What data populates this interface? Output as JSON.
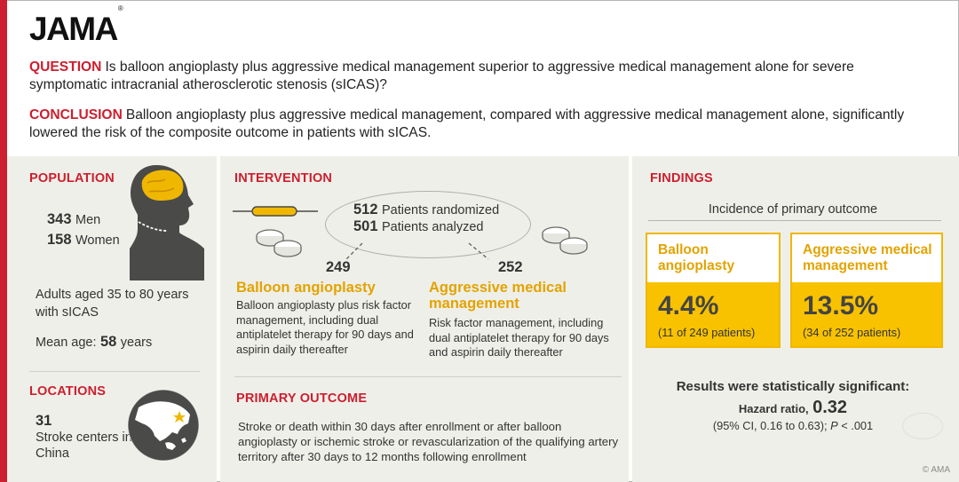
{
  "logo": {
    "text": "JAMA",
    "mark": "®"
  },
  "question": {
    "label": "QUESTION",
    "text": "Is balloon angioplasty plus aggressive medical management superior to aggressive medical management alone for severe symptomatic intracranial atherosclerotic stenosis (sICAS)?"
  },
  "conclusion": {
    "label": "CONCLUSION",
    "text": "Balloon angioplasty plus aggressive medical management, compared with aggressive medical management alone, significantly lowered the risk of the composite outcome in patients with sICAS."
  },
  "population": {
    "heading": "POPULATION",
    "men_count": "343",
    "men_label": "Men",
    "women_count": "158",
    "women_label": "Women",
    "description": "Adults aged 35 to 80 years with sICAS",
    "mean_age_label": "Mean age:",
    "mean_age_value": "58",
    "mean_age_unit": "years"
  },
  "locations": {
    "heading": "LOCATIONS",
    "count": "31",
    "text": "Stroke centers in China"
  },
  "intervention": {
    "heading": "INTERVENTION",
    "randomized_count": "512",
    "randomized_label": "Patients randomized",
    "analyzed_count": "501",
    "analyzed_label": "Patients analyzed",
    "arm1": {
      "count": "249",
      "title": "Balloon angioplasty",
      "description": "Balloon angioplasty plus risk factor management, including dual antiplatelet therapy for 90 days and aspirin daily thereafter"
    },
    "arm2": {
      "count": "252",
      "title": "Aggressive medical management",
      "description": "Risk factor management, including dual antiplatelet therapy for 90 days and aspirin daily thereafter"
    }
  },
  "primary_outcome": {
    "heading": "PRIMARY OUTCOME",
    "text": "Stroke or death within 30 days after enrollment or after balloon angioplasty or ischemic stroke or revascularization of the qualifying artery territory after 30 days to 12 months following enrollment"
  },
  "findings": {
    "heading": "FINDINGS",
    "subtitle": "Incidence of primary outcome",
    "box1": {
      "label": "Balloon angioplasty",
      "value": "4.4%",
      "detail": "(11 of 249 patients)"
    },
    "box2": {
      "label": "Aggressive medical management",
      "value": "13.5%",
      "detail": "(34 of 252 patients)"
    },
    "significance": "Results were statistically significant:",
    "hr_label": "Hazard ratio,",
    "hr_value": "0.32",
    "ci_prefix": "(95% CI, 0.16 to 0.63);",
    "p_label": "P",
    "p_value": "< .001"
  },
  "copyright": "© AMA",
  "colors": {
    "red": "#cc1f2f",
    "orange": "#e3a300",
    "yellow": "#f8c200",
    "panel": "#efefe9",
    "gray_icon": "#4a4a48"
  }
}
